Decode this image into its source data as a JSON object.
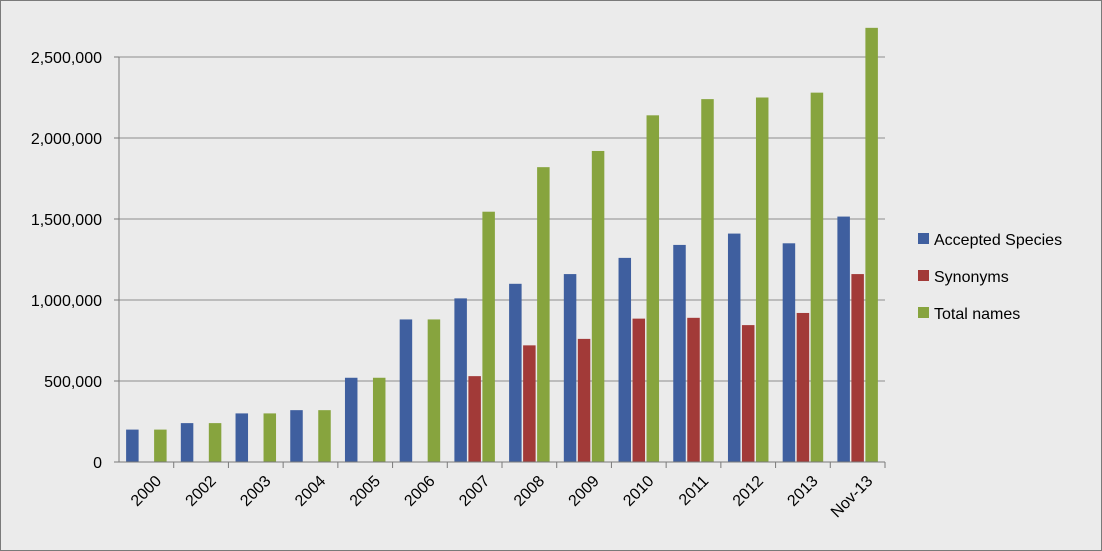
{
  "chart_data": {
    "type": "bar",
    "title": "",
    "xlabel": "",
    "ylabel": "",
    "categories": [
      "2000",
      "2002",
      "2003",
      "2004",
      "2005",
      "2006",
      "2007",
      "2008",
      "2009",
      "2010",
      "2011",
      "2012",
      "2013",
      "Nov-13"
    ],
    "series": [
      {
        "name": "Accepted Species",
        "color": "#3f5f9f",
        "values": [
          200000,
          240000,
          300000,
          320000,
          520000,
          880000,
          1010000,
          1100000,
          1160000,
          1260000,
          1340000,
          1410000,
          1350000,
          1515000
        ]
      },
      {
        "name": "Synonyms",
        "color": "#a23a38",
        "values": [
          0,
          0,
          0,
          0,
          0,
          0,
          530000,
          720000,
          760000,
          885000,
          890000,
          845000,
          920000,
          1160000
        ]
      },
      {
        "name": "Total names",
        "color": "#87a43e",
        "values": [
          200000,
          240000,
          300000,
          320000,
          520000,
          880000,
          1545000,
          1820000,
          1920000,
          2140000,
          2240000,
          2250000,
          2280000,
          2680000
        ]
      }
    ],
    "ylim": [
      0,
      2500000
    ],
    "yticks": [
      0,
      500000,
      1000000,
      1500000,
      2000000,
      2500000
    ],
    "ytick_labels": [
      "0",
      "500,000",
      "1,000,000",
      "1,500,000",
      "2,000,000",
      "2,500,000"
    ],
    "grid": true,
    "legend_position": "right"
  }
}
